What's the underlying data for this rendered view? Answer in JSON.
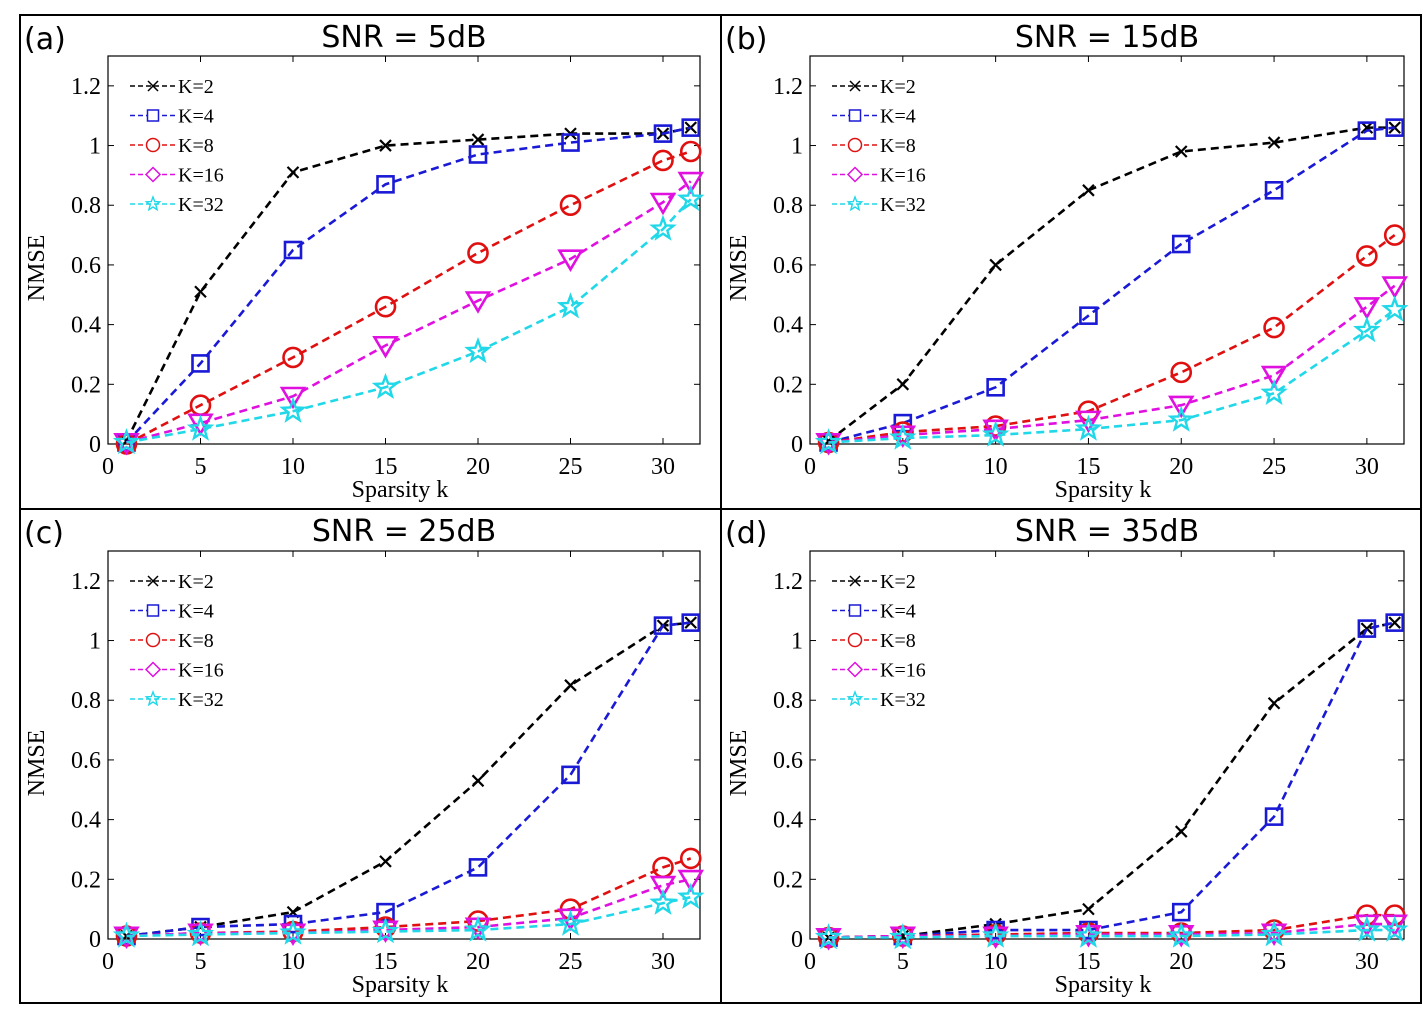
{
  "figure": {
    "panel_layout": "2x2 grid"
  },
  "series_styles": [
    {
      "name": "K=2",
      "color": "#000000",
      "marker": "x"
    },
    {
      "name": "K=4",
      "color": "#1a1ad6",
      "marker": "square"
    },
    {
      "name": "K=8",
      "color": "#e01010",
      "marker": "circle"
    },
    {
      "name": "K=16",
      "color": "#e010e0",
      "marker": "triangle-down"
    },
    {
      "name": "K=32",
      "color": "#20d8e8",
      "marker": "star"
    }
  ],
  "chart_data": [
    {
      "type": "line",
      "panel_label": "(a)",
      "title": "SNR = 5dB",
      "xlabel": "Sparsity k",
      "ylabel": "NMSE",
      "xlim": [
        0,
        32
      ],
      "ylim": [
        0,
        1.3
      ],
      "xticks": [
        0,
        5,
        10,
        15,
        20,
        25,
        30
      ],
      "yticks": [
        0,
        0.2,
        0.4,
        0.6,
        0.8,
        1,
        1.2
      ],
      "ytick_labels": [
        "0",
        "0.2",
        "0.4",
        "0.6",
        "0.8",
        "1",
        "1.2"
      ],
      "legend_position": "top-left",
      "x": [
        1,
        5,
        10,
        15,
        20,
        25,
        30,
        31.5
      ],
      "series": [
        {
          "name": "K=2",
          "values": [
            0.01,
            0.51,
            0.91,
            1.0,
            1.02,
            1.04,
            1.04,
            1.06
          ]
        },
        {
          "name": "K=4",
          "values": [
            0.005,
            0.27,
            0.65,
            0.87,
            0.97,
            1.01,
            1.04,
            1.06
          ]
        },
        {
          "name": "K=8",
          "values": [
            0.0,
            0.13,
            0.29,
            0.46,
            0.64,
            0.8,
            0.95,
            0.98
          ]
        },
        {
          "name": "K=16",
          "values": [
            0.005,
            0.07,
            0.16,
            0.33,
            0.48,
            0.62,
            0.81,
            0.88
          ]
        },
        {
          "name": "K=32",
          "values": [
            0.005,
            0.05,
            0.11,
            0.19,
            0.31,
            0.46,
            0.72,
            0.82
          ]
        }
      ]
    },
    {
      "type": "line",
      "panel_label": "(b)",
      "title": "SNR = 15dB",
      "xlabel": "Sparsity k",
      "ylabel": "NMSE",
      "xlim": [
        0,
        32
      ],
      "ylim": [
        0,
        1.3
      ],
      "xticks": [
        0,
        5,
        10,
        15,
        20,
        25,
        30
      ],
      "yticks": [
        0,
        0.2,
        0.4,
        0.6,
        0.8,
        1,
        1.2
      ],
      "ytick_labels": [
        "0",
        "0.2",
        "0.4",
        "0.6",
        "0.8",
        "1",
        "1.2"
      ],
      "legend_position": "top-left",
      "x": [
        1,
        5,
        10,
        15,
        20,
        25,
        30,
        31.5
      ],
      "series": [
        {
          "name": "K=2",
          "values": [
            0.01,
            0.2,
            0.6,
            0.85,
            0.98,
            1.01,
            1.06,
            1.06
          ]
        },
        {
          "name": "K=4",
          "values": [
            0.005,
            0.07,
            0.19,
            0.43,
            0.67,
            0.85,
            1.05,
            1.06
          ]
        },
        {
          "name": "K=8",
          "values": [
            0.005,
            0.04,
            0.06,
            0.11,
            0.24,
            0.39,
            0.63,
            0.7
          ]
        },
        {
          "name": "K=16",
          "values": [
            0.005,
            0.03,
            0.05,
            0.08,
            0.13,
            0.23,
            0.46,
            0.53
          ]
        },
        {
          "name": "K=32",
          "values": [
            0.005,
            0.02,
            0.03,
            0.05,
            0.08,
            0.17,
            0.38,
            0.45
          ]
        }
      ]
    },
    {
      "type": "line",
      "panel_label": "(c)",
      "title": "SNR = 25dB",
      "xlabel": "Sparsity k",
      "ylabel": "NMSE",
      "xlim": [
        0,
        32
      ],
      "ylim": [
        0,
        1.3
      ],
      "xticks": [
        0,
        5,
        10,
        15,
        20,
        25,
        30
      ],
      "yticks": [
        0,
        0.2,
        0.4,
        0.6,
        0.8,
        1,
        1.2
      ],
      "ytick_labels": [
        "0",
        "0.2",
        "0.4",
        "0.6",
        "0.8",
        "1",
        "1.2"
      ],
      "legend_position": "top-left",
      "x": [
        1,
        5,
        10,
        15,
        20,
        25,
        30,
        31.5
      ],
      "series": [
        {
          "name": "K=2",
          "values": [
            0.01,
            0.04,
            0.09,
            0.26,
            0.53,
            0.85,
            1.05,
            1.06
          ]
        },
        {
          "name": "K=4",
          "values": [
            0.01,
            0.04,
            0.05,
            0.09,
            0.24,
            0.55,
            1.05,
            1.06
          ]
        },
        {
          "name": "K=8",
          "values": [
            0.01,
            0.02,
            0.025,
            0.04,
            0.06,
            0.1,
            0.24,
            0.27
          ]
        },
        {
          "name": "K=16",
          "values": [
            0.01,
            0.02,
            0.02,
            0.03,
            0.04,
            0.07,
            0.18,
            0.2
          ]
        },
        {
          "name": "K=32",
          "values": [
            0.01,
            0.015,
            0.02,
            0.025,
            0.03,
            0.05,
            0.12,
            0.14
          ]
        }
      ]
    },
    {
      "type": "line",
      "panel_label": "(d)",
      "title": "SNR = 35dB",
      "xlabel": "Sparsity k",
      "ylabel": "NMSE",
      "xlim": [
        0,
        32
      ],
      "ylim": [
        0,
        1.3
      ],
      "xticks": [
        0,
        5,
        10,
        15,
        20,
        25,
        30
      ],
      "yticks": [
        0,
        0.2,
        0.4,
        0.6,
        0.8,
        1,
        1.2
      ],
      "ytick_labels": [
        "0",
        "0.2",
        "0.4",
        "0.6",
        "0.8",
        "1",
        "1.2"
      ],
      "legend_position": "top-left",
      "x": [
        1,
        5,
        10,
        15,
        20,
        25,
        30,
        31.5
      ],
      "series": [
        {
          "name": "K=2",
          "values": [
            0.005,
            0.01,
            0.05,
            0.1,
            0.36,
            0.79,
            1.04,
            1.06
          ]
        },
        {
          "name": "K=4",
          "values": [
            0.005,
            0.01,
            0.03,
            0.03,
            0.09,
            0.41,
            1.04,
            1.06
          ]
        },
        {
          "name": "K=8",
          "values": [
            0.005,
            0.01,
            0.015,
            0.02,
            0.02,
            0.03,
            0.08,
            0.08
          ]
        },
        {
          "name": "K=16",
          "values": [
            0.005,
            0.01,
            0.01,
            0.015,
            0.015,
            0.02,
            0.05,
            0.05
          ]
        },
        {
          "name": "K=32",
          "values": [
            0.005,
            0.005,
            0.01,
            0.01,
            0.01,
            0.015,
            0.03,
            0.03
          ]
        }
      ]
    }
  ]
}
